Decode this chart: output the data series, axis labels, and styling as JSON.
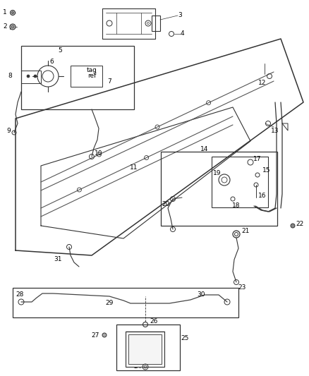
{
  "bg_color": "#ffffff",
  "line_color": "#333333",
  "label_color": "#000000",
  "fig_width": 4.38,
  "fig_height": 5.33,
  "dpi": 100,
  "label_fs": 6.5,
  "lw_main": 0.9,
  "lw_thin": 0.6,
  "lw_thick": 1.1
}
